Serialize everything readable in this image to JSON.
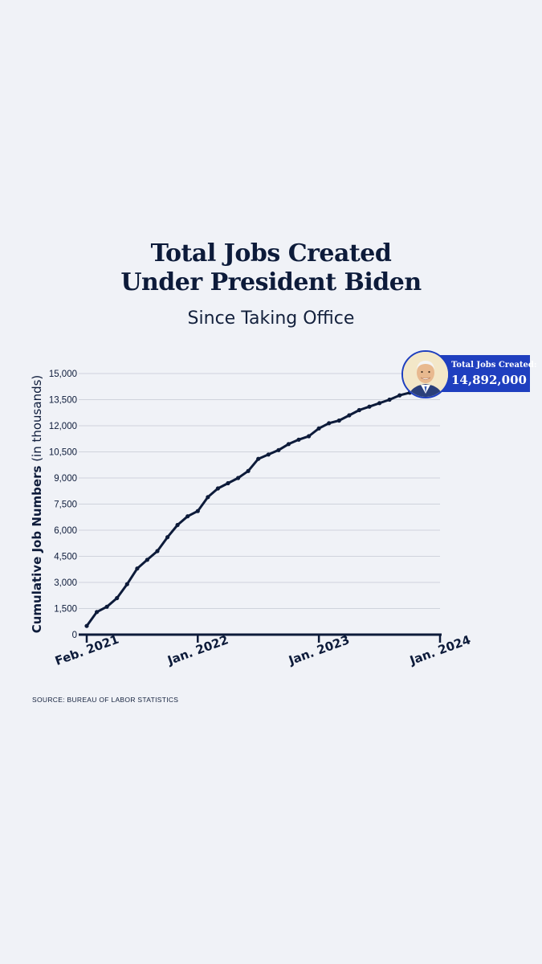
{
  "header": {
    "title_line1": "Total Jobs Created",
    "title_line2": "Under President Biden",
    "subtitle": "Since Taking Office"
  },
  "footer": {
    "source": "SOURCE: BUREAU OF LABOR STATISTICS"
  },
  "callout": {
    "label": "Total Jobs Created:",
    "value": "14,892,000"
  },
  "colors": {
    "background": "#f0f2f7",
    "line": "#0d1b3a",
    "callout": "#1f3fbf"
  },
  "chart_data": {
    "type": "line",
    "title": "Total Jobs Created Under President Biden",
    "subtitle": "Since Taking Office",
    "ylabel_bold": "Cumulative Job Numbers",
    "ylabel_rest": " (in thousands)",
    "ylim": [
      0,
      15000
    ],
    "yticks": [
      0,
      1500,
      3000,
      4500,
      6000,
      7500,
      9000,
      10500,
      12000,
      13500,
      15000
    ],
    "ytick_labels": [
      "0",
      "1,500",
      "3,000",
      "4,500",
      "6,000",
      "7,500",
      "9,000",
      "10,500",
      "12,000",
      "13,500",
      "15,000"
    ],
    "xlim": [
      "2021-02",
      "2024-01"
    ],
    "xticks": [
      "2021-02",
      "2022-01",
      "2023-01",
      "2024-01"
    ],
    "xtick_labels": [
      "Feb. 2021",
      "Jan. 2022",
      "Jan. 2023",
      "Jan. 2024"
    ],
    "grid": true,
    "series": [
      {
        "x": [
          "2021-02",
          "2021-03",
          "2021-04",
          "2021-05",
          "2021-06",
          "2021-07",
          "2021-08",
          "2021-09",
          "2021-10",
          "2021-11",
          "2021-12",
          "2022-01",
          "2022-02",
          "2022-03",
          "2022-04",
          "2022-05",
          "2022-06",
          "2022-07",
          "2022-08",
          "2022-09",
          "2022-10",
          "2022-11",
          "2022-12",
          "2023-01",
          "2023-02",
          "2023-03",
          "2023-04",
          "2023-05",
          "2023-06",
          "2023-07",
          "2023-08",
          "2023-09",
          "2023-10",
          "2023-11",
          "2023-12",
          "2024-01"
        ],
        "values": [
          500,
          1300,
          1600,
          2100,
          2900,
          3800,
          4300,
          4800,
          5600,
          6300,
          6800,
          7100,
          7900,
          8400,
          8700,
          9000,
          9400,
          10100,
          10350,
          10600,
          10950,
          11200,
          11400,
          11850,
          12150,
          12300,
          12600,
          12900,
          13100,
          13300,
          13500,
          13750,
          13900,
          14050,
          14250,
          14892
        ]
      }
    ]
  }
}
